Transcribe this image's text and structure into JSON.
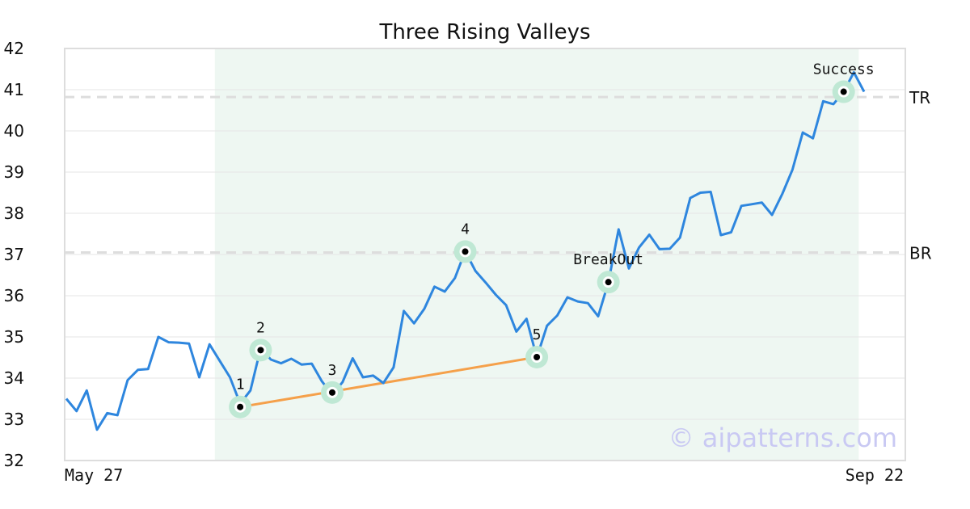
{
  "chart_data": {
    "type": "line",
    "title": "Three Rising Valleys",
    "xlabel": "",
    "ylabel": "",
    "x_tick_labels": [
      "May 27",
      "Sep 22"
    ],
    "y_ticks": [
      32,
      33,
      34,
      35,
      36,
      37,
      38,
      39,
      40,
      41,
      42
    ],
    "ylim": [
      32,
      42
    ],
    "grid": "horizontal",
    "colors": {
      "price_line": "#2e86de",
      "trend_line": "#f5a04a",
      "highlight_band": "#eef7f2",
      "marker_ring": "#bfe8d4",
      "level_line": "#dddddd",
      "watermark": "#c9c9f3"
    },
    "series": [
      {
        "values": [
          33.5,
          33.2,
          33.7,
          32.75,
          33.15,
          33.1,
          33.95,
          34.2,
          34.22,
          35.0,
          34.87,
          34.86,
          34.84,
          34.02,
          34.82,
          34.42,
          34.02,
          33.38,
          33.7,
          34.72,
          34.45,
          34.36,
          34.47,
          34.33,
          34.35,
          33.92,
          33.6,
          33.9,
          34.48,
          34.02,
          34.06,
          33.88,
          34.26,
          35.63,
          35.33,
          35.68,
          36.22,
          36.1,
          36.43,
          37.08,
          36.6,
          36.32,
          36.02,
          35.77,
          35.13,
          35.44,
          34.5,
          35.27,
          35.52,
          35.96,
          35.86,
          35.82,
          35.5,
          36.33,
          37.61,
          36.66,
          37.17,
          37.48,
          37.13,
          37.14,
          37.41,
          38.37,
          38.5,
          38.52,
          37.47,
          37.54,
          38.18,
          38.22,
          38.26,
          37.96,
          38.47,
          39.06,
          39.96,
          39.82,
          40.72,
          40.65,
          40.95,
          41.42,
          40.95
        ]
      }
    ],
    "highlight_range": {
      "start_index": 15,
      "end_index": 77
    },
    "levels": [
      {
        "label": "TR",
        "value": 40.82
      },
      {
        "label": "BR",
        "value": 37.05
      }
    ],
    "points": [
      {
        "label": "1",
        "index": 17,
        "value": 33.3
      },
      {
        "label": "2",
        "index": 19,
        "value": 34.68
      },
      {
        "label": "3",
        "index": 26,
        "value": 33.65
      },
      {
        "label": "4",
        "index": 39,
        "value": 37.07
      },
      {
        "label": "5",
        "index": 46,
        "value": 34.51
      },
      {
        "label": "BreakOut",
        "index": 53,
        "value": 36.33
      },
      {
        "label": "Success",
        "index": 76,
        "value": 40.95
      }
    ],
    "trend_line": {
      "from_index": 17,
      "from_value": 33.3,
      "to_index": 46,
      "to_value": 34.51
    },
    "watermark": "© aipatterns.com"
  }
}
